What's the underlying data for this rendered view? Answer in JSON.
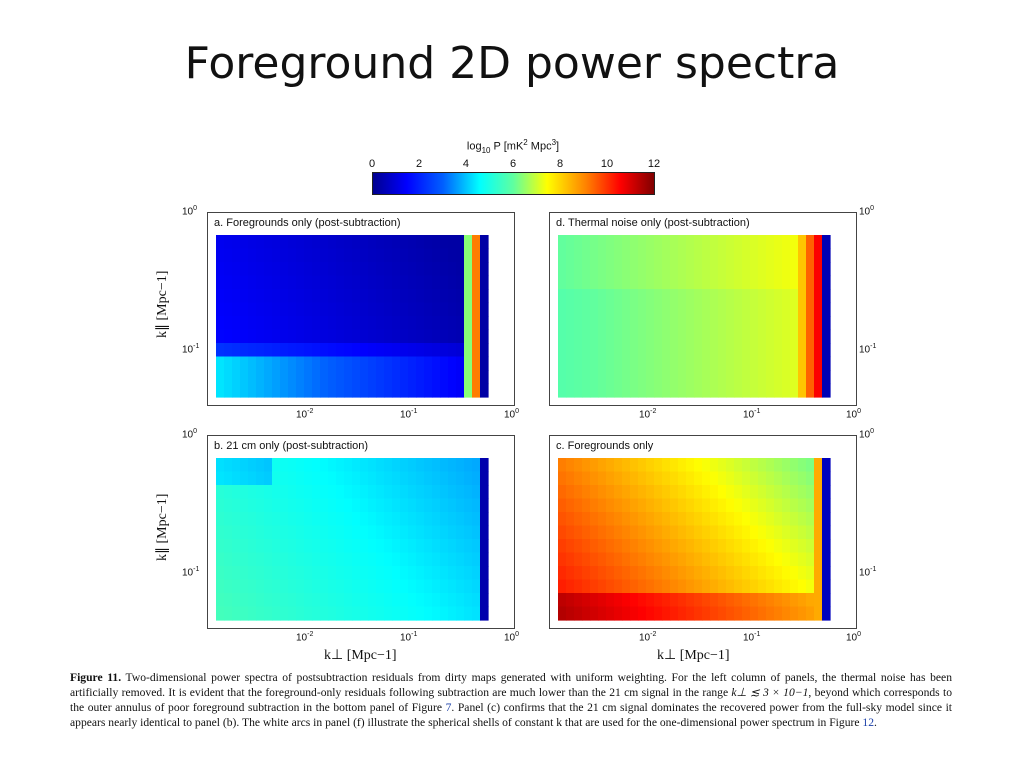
{
  "slide": {
    "title": "Foreground 2D power spectra"
  },
  "colorbar": {
    "label": "log10 P [mK2 Mpc3]",
    "ticks": [
      "0",
      "2",
      "4",
      "6",
      "8",
      "10",
      "12"
    ],
    "colors": [
      "#00008f",
      "#0000ff",
      "#0060ff",
      "#00ffff",
      "#60ff9f",
      "#ffff00",
      "#ff8000",
      "#ff0000",
      "#800000"
    ]
  },
  "axes": {
    "x_ticks": [
      "10-2",
      "10-1",
      "100"
    ],
    "y_ticks": [
      "100",
      "10-1"
    ],
    "ylabel": "k∥ [Mpc−1]",
    "xlabel": "k⊥ [Mpc−1]"
  },
  "panels": {
    "a": {
      "label": "a.  Foregrounds only (post-subtraction)"
    },
    "d": {
      "label": "d.  Thermal noise only (post-subtraction)"
    },
    "b": {
      "label": "b.  21 cm only (post-subtraction)"
    },
    "c": {
      "label": "c.  Foregrounds only"
    }
  },
  "caption": {
    "fig": "Figure 11.",
    "text1": " Two-dimensional power spectra of postsubtraction residuals from dirty maps generated with uniform weighting. For the left column of panels, the thermal noise has been artificially removed. It is evident that the foreground-only residuals following subtraction are much lower than the 21 cm signal in the range ",
    "range": "k⊥ ≲ 3 × 10−1",
    "text2": ", beyond which corresponds to the outer annulus of poor foreground subtraction in the bottom panel of Figure ",
    "ref7": "7",
    "text3": ". Panel (c) confirms that the 21 cm signal dominates the recovered power from the full-sky model since it appears nearly identical to panel (b). The white arcs in panel (f) illustrate the spherical shells of constant k that are used for the one-dimensional power spectrum in Figure ",
    "ref12": "12",
    "text4": "."
  }
}
